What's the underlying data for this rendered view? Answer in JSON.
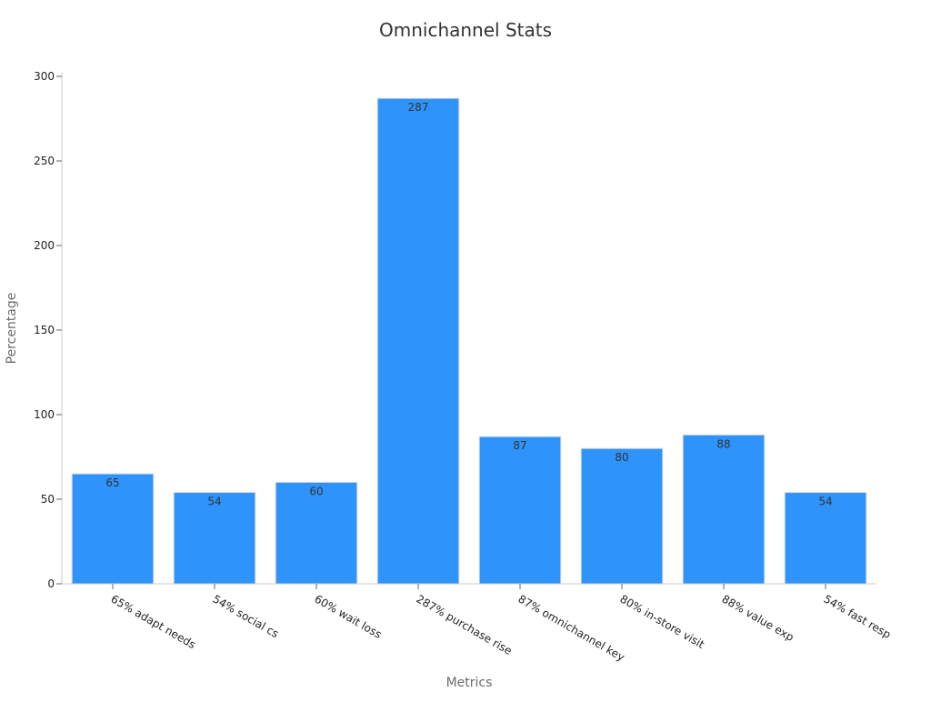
{
  "chart_data": {
    "type": "bar",
    "title": "Omnichannel Stats",
    "xlabel": "Metrics",
    "ylabel": "Percentage",
    "categories": [
      "65% adapt needs",
      "54% social cs",
      "60% wait loss",
      "287% purchase rise",
      "87% omnichannel key",
      "80% in-store visit",
      "88% value exp",
      "54% fast resp"
    ],
    "values": [
      65,
      54,
      60,
      287,
      87,
      80,
      88,
      54
    ],
    "data_labels": [
      "65",
      "54",
      "60",
      "287",
      "87",
      "80",
      "88",
      "54"
    ],
    "ylim": [
      0,
      300
    ],
    "yticks": [
      0,
      50,
      100,
      150,
      200,
      250,
      300
    ],
    "ytick_labels": [
      "0",
      "50",
      "100",
      "150",
      "200",
      "250",
      "300"
    ],
    "grid": false,
    "legend": "none",
    "bar_color": "#2e93fa"
  }
}
